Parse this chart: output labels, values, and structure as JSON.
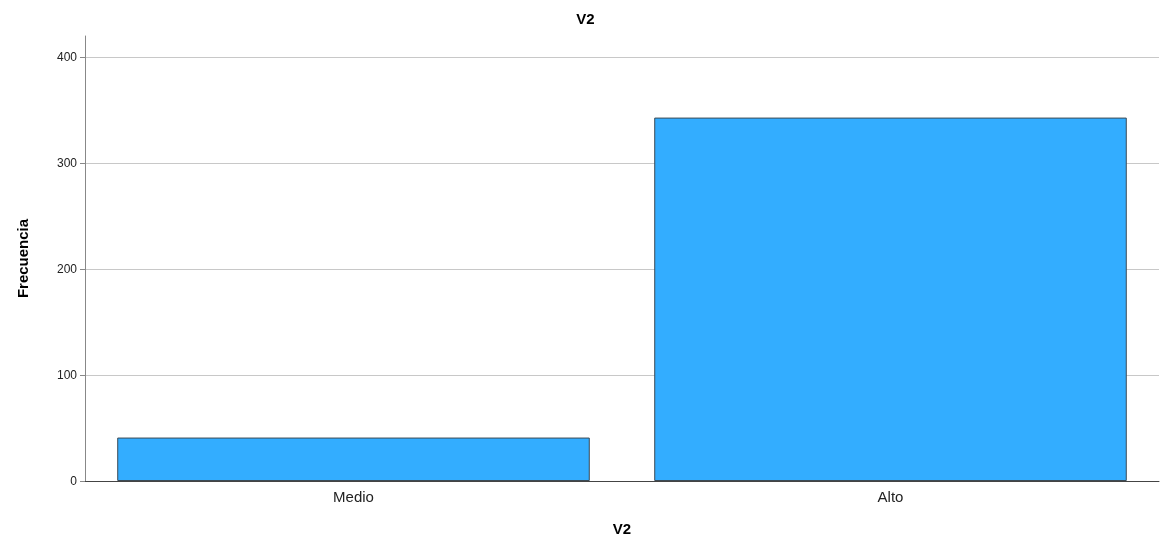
{
  "chart_data": {
    "type": "bar",
    "title": "V2",
    "xlabel": "V2",
    "ylabel": "Frecuencia",
    "categories": [
      "Medio",
      "Alto"
    ],
    "values": [
      41,
      343
    ],
    "color": "#33adff",
    "ylim": [
      0,
      420
    ],
    "yticks": [
      0,
      100,
      200,
      300,
      400
    ],
    "grid": "y"
  }
}
